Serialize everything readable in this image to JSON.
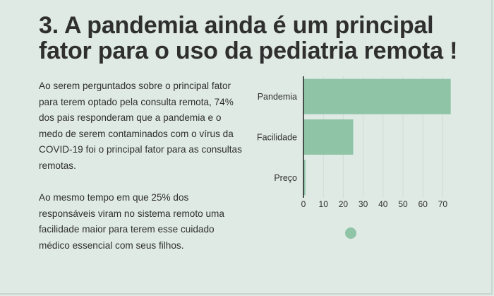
{
  "title": "3. A pandemia ainda é um principal fator para o uso da pediatria remota !",
  "paragraphs": [
    "Ao serem perguntados sobre o principal fator para terem optado pela consulta remota, 74% dos pais responderam que a pandemia e o medo de serem contaminados com o vírus da COVID-19 foi o principal fator para as consultas remotas.",
    "Ao mesmo tempo em que 25% dos responsáveis viram no sistema remoto uma facilidade maior para terem esse cuidado médico essencial com seus filhos."
  ],
  "colors": {
    "bar": "#8fc4a7",
    "background": "#dfeae4",
    "text": "#2f2f2f"
  },
  "chart_data": {
    "type": "bar",
    "orientation": "horizontal",
    "categories": [
      "Pandemia",
      "Facilidade",
      "Preço"
    ],
    "values": [
      74,
      25,
      1
    ],
    "xticks": [
      0,
      10,
      20,
      30,
      40,
      50,
      60,
      70
    ],
    "xlim": [
      0,
      75
    ],
    "grid": true
  }
}
